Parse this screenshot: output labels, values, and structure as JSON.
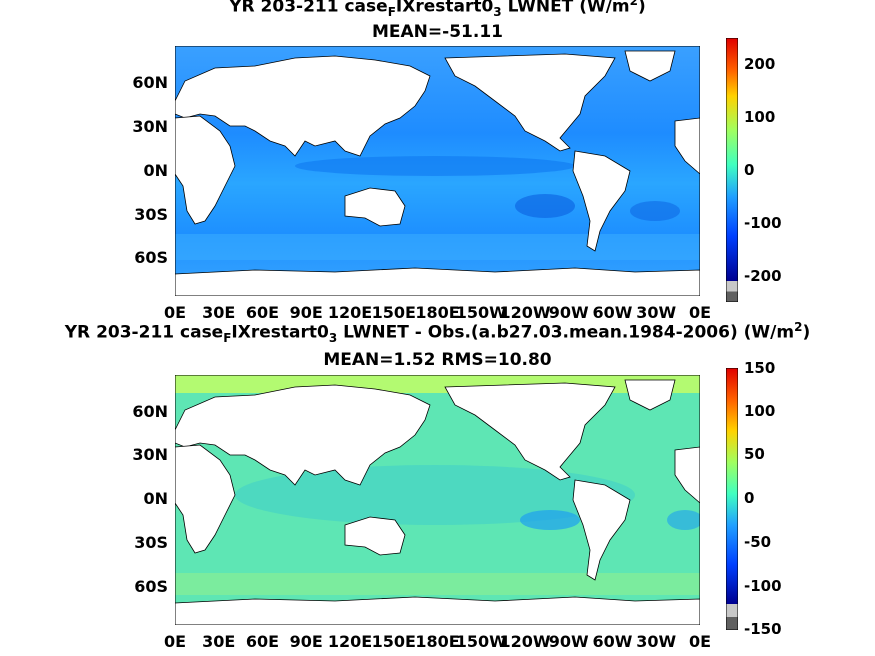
{
  "panel_top": {
    "title_parts": {
      "a": "YR 203-211 case",
      "sub1": "F",
      "b": "IXrestart0",
      "sub2": "3",
      "c": " LWNET (W/m",
      "sup": "2",
      "d": ")"
    },
    "subtitle": "MEAN=-51.11",
    "lat_labels": [
      "60N",
      "30N",
      "0N",
      "30S",
      "60S"
    ],
    "lon_labels": [
      "0E",
      "30E",
      "60E",
      "90E",
      "120E",
      "150E",
      "180E",
      "150W",
      "120W",
      "90W",
      "60W",
      "30W",
      "0E"
    ],
    "colorbar_ticks": [
      "200",
      "100",
      "0",
      "-100",
      "-200"
    ],
    "colorbar_range": [
      -250,
      250
    ]
  },
  "panel_bottom": {
    "title_parts": {
      "a": "YR 203-211 case",
      "sub1": "F",
      "b": "IXrestart0",
      "sub2": "3",
      "c": " LWNET - Obs.(a.b27.03.mean.1984-2006) (W/m",
      "sup": "2",
      "d": ")"
    },
    "subtitle": "MEAN=1.52 RMS=10.80",
    "lat_labels": [
      "60N",
      "30N",
      "0N",
      "30S",
      "60S"
    ],
    "lon_labels": [
      "0E",
      "30E",
      "60E",
      "90E",
      "120E",
      "150E",
      "180E",
      "150W",
      "120W",
      "90W",
      "60W",
      "30W",
      "0E"
    ],
    "colorbar_ticks": [
      "150",
      "100",
      "50",
      "0",
      "-50",
      "-100",
      "-150"
    ],
    "colorbar_range": [
      -150,
      150
    ]
  },
  "colors": {
    "ocean_top": "#1e90ff",
    "ocean_bottom": "#66e8a8",
    "land": "#ffffff",
    "coast": "#000000",
    "missing": "#606060"
  }
}
